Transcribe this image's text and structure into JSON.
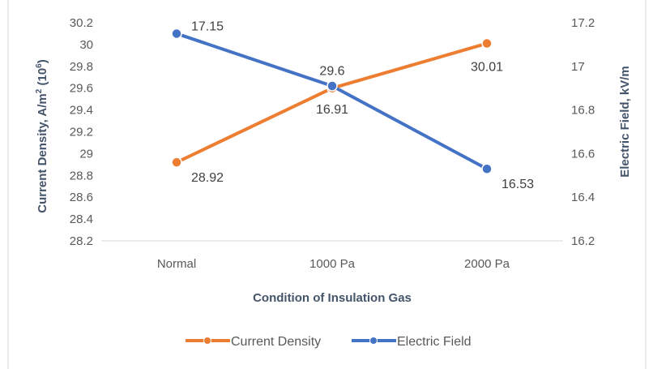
{
  "chart_data": {
    "type": "line",
    "categories": [
      "Normal",
      "1000 Pa",
      "2000 Pa"
    ],
    "xlabel": "Condition of Insulation Gas",
    "ylabel_left": "Current Density, A/m",
    "ylabel_left_sup1": "2",
    "ylabel_left_mid": " (10",
    "ylabel_left_sup2": "6",
    "ylabel_left_end": ")",
    "ylabel_right": "Electric Field, kV/m",
    "y_left": {
      "min": 28.2,
      "max": 30.2,
      "ticks": [
        "28.2",
        "28.4",
        "28.6",
        "28.8",
        "29",
        "29.2",
        "29.4",
        "29.6",
        "29.8",
        "30",
        "30.2"
      ]
    },
    "y_right": {
      "min": 16.2,
      "max": 17.2,
      "ticks": [
        "16.2",
        "16.4",
        "16.6",
        "16.8",
        "17",
        "17.2"
      ]
    },
    "series": [
      {
        "name": "Current Density",
        "axis": "left",
        "color": "#ED7D31",
        "values": [
          28.92,
          29.6,
          30.01
        ],
        "labels": [
          "28.92",
          "29.6",
          "30.01"
        ],
        "label_positions": [
          "below-right",
          "above",
          "below"
        ]
      },
      {
        "name": "Electric Field",
        "axis": "right",
        "color": "#4472C4",
        "values": [
          17.15,
          16.91,
          16.53
        ],
        "labels": [
          "17.15",
          "16.91",
          "16.53"
        ],
        "label_positions": [
          "above-right",
          "below",
          "below-right"
        ]
      }
    ],
    "legend_position": "bottom",
    "grid": false
  }
}
